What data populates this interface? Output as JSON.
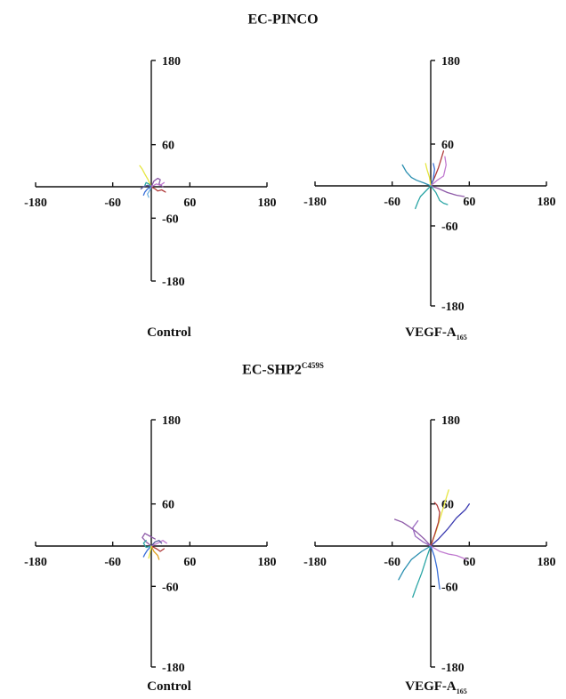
{
  "sections": [
    {
      "title": "EC-PINCO",
      "title_sup": ""
    },
    {
      "title": "EC-SHP2",
      "title_sup": "C459S"
    }
  ],
  "captions": [
    {
      "text": "Control",
      "sub": ""
    },
    {
      "text": "VEGF-A",
      "sub": "165"
    },
    {
      "text": "Control",
      "sub": ""
    },
    {
      "text": "VEGF-A",
      "sub": "165"
    }
  ],
  "chart_data": [
    {
      "type": "line",
      "title": "EC-PINCO",
      "panel_caption": "Control",
      "xlim": [
        -180,
        180
      ],
      "ylim": [
        -180,
        180
      ],
      "x_ticks": [
        "-180",
        "-60",
        "60",
        "180"
      ],
      "y_ticks": [
        "180",
        "60",
        "-60",
        "-180"
      ],
      "grid": false,
      "series": [
        {
          "color": "#e6e640",
          "points": [
            [
              0,
              0
            ],
            [
              -5,
              10
            ],
            [
              -10,
              18
            ],
            [
              -14,
              25
            ],
            [
              -18,
              30
            ]
          ]
        },
        {
          "color": "#8e5aa8",
          "points": [
            [
              0,
              0
            ],
            [
              4,
              8
            ],
            [
              10,
              12
            ],
            [
              14,
              10
            ],
            [
              12,
              4
            ],
            [
              18,
              0
            ]
          ]
        },
        {
          "color": "#b03a3a",
          "points": [
            [
              0,
              0
            ],
            [
              6,
              -4
            ],
            [
              10,
              -8
            ],
            [
              16,
              -6
            ],
            [
              22,
              -10
            ]
          ]
        },
        {
          "color": "#3a6fd8",
          "points": [
            [
              0,
              0
            ],
            [
              -6,
              -4
            ],
            [
              -10,
              -10
            ],
            [
              -12,
              -16
            ]
          ]
        },
        {
          "color": "#2aa5a5",
          "points": [
            [
              0,
              0
            ],
            [
              -4,
              4
            ],
            [
              -8,
              6
            ],
            [
              -10,
              2
            ]
          ]
        },
        {
          "color": "#6fb0e0",
          "points": [
            [
              0,
              0
            ],
            [
              -2,
              -6
            ],
            [
              -6,
              -14
            ],
            [
              -4,
              -20
            ]
          ]
        },
        {
          "color": "#c07ad0",
          "points": [
            [
              0,
              0
            ],
            [
              8,
              4
            ],
            [
              14,
              2
            ],
            [
              20,
              6
            ]
          ]
        },
        {
          "color": "#555599",
          "points": [
            [
              0,
              0
            ],
            [
              -6,
              2
            ],
            [
              -12,
              0
            ],
            [
              -16,
              -4
            ]
          ]
        }
      ]
    },
    {
      "type": "line",
      "title": "EC-PINCO",
      "panel_caption": "VEGF-A165",
      "xlim": [
        -180,
        180
      ],
      "ylim": [
        -180,
        180
      ],
      "x_ticks": [
        "-180",
        "-60",
        "60",
        "180"
      ],
      "y_ticks": [
        "180",
        "60",
        "-60",
        "-180"
      ],
      "grid": false,
      "series": [
        {
          "color": "#b03a3a",
          "points": [
            [
              0,
              0
            ],
            [
              6,
              12
            ],
            [
              12,
              26
            ],
            [
              16,
              38
            ],
            [
              20,
              50
            ]
          ]
        },
        {
          "color": "#8e5aa8",
          "points": [
            [
              0,
              0
            ],
            [
              12,
              -4
            ],
            [
              26,
              -10
            ],
            [
              40,
              -14
            ],
            [
              52,
              -16
            ]
          ]
        },
        {
          "color": "#2aa5a5",
          "points": [
            [
              0,
              0
            ],
            [
              -8,
              -8
            ],
            [
              -16,
              -16
            ],
            [
              -20,
              -24
            ],
            [
              -24,
              -34
            ]
          ]
        },
        {
          "color": "#2a8fb0",
          "points": [
            [
              0,
              0
            ],
            [
              -10,
              4
            ],
            [
              -22,
              8
            ],
            [
              -30,
              12
            ],
            [
              -38,
              20
            ],
            [
              -44,
              30
            ]
          ]
        },
        {
          "color": "#3a6fd8",
          "points": [
            [
              0,
              0
            ],
            [
              4,
              10
            ],
            [
              6,
              24
            ],
            [
              4,
              32
            ]
          ]
        },
        {
          "color": "#e6e640",
          "points": [
            [
              0,
              0
            ],
            [
              -2,
              12
            ],
            [
              -6,
              24
            ],
            [
              -8,
              32
            ]
          ]
        },
        {
          "color": "#c07ad0",
          "points": [
            [
              0,
              0
            ],
            [
              10,
              8
            ],
            [
              20,
              14
            ],
            [
              24,
              30
            ],
            [
              22,
              42
            ]
          ]
        },
        {
          "color": "#2aa5a5",
          "points": [
            [
              0,
              0
            ],
            [
              8,
              -10
            ],
            [
              14,
              -22
            ],
            [
              20,
              -26
            ],
            [
              26,
              -28
            ]
          ]
        }
      ]
    },
    {
      "type": "line",
      "title": "EC-SHP2C459S",
      "panel_caption": "Control",
      "xlim": [
        -180,
        180
      ],
      "ylim": [
        -180,
        180
      ],
      "x_ticks": [
        "-180",
        "-60",
        "60",
        "180"
      ],
      "y_ticks": [
        "180",
        "60",
        "-60",
        "-180"
      ],
      "grid": false,
      "series": [
        {
          "color": "#8e5aa8",
          "points": [
            [
              0,
              0
            ],
            [
              -8,
              6
            ],
            [
              -14,
              12
            ],
            [
              -10,
              18
            ],
            [
              -2,
              14
            ],
            [
              6,
              10
            ]
          ]
        },
        {
          "color": "#b03a3a",
          "points": [
            [
              0,
              0
            ],
            [
              8,
              -4
            ],
            [
              14,
              -8
            ],
            [
              20,
              -4
            ]
          ]
        },
        {
          "color": "#e0a020",
          "points": [
            [
              0,
              0
            ],
            [
              4,
              -8
            ],
            [
              10,
              -14
            ],
            [
              12,
              -20
            ]
          ]
        },
        {
          "color": "#3a6fd8",
          "points": [
            [
              0,
              0
            ],
            [
              -6,
              -6
            ],
            [
              -10,
              -12
            ],
            [
              -12,
              -16
            ]
          ]
        },
        {
          "color": "#2aa5a5",
          "points": [
            [
              0,
              0
            ],
            [
              -8,
              -2
            ],
            [
              -12,
              4
            ],
            [
              -8,
              8
            ]
          ]
        },
        {
          "color": "#c07ad0",
          "points": [
            [
              0,
              0
            ],
            [
              10,
              4
            ],
            [
              18,
              8
            ],
            [
              24,
              4
            ]
          ]
        },
        {
          "color": "#555599",
          "points": [
            [
              0,
              0
            ],
            [
              6,
              6
            ],
            [
              12,
              8
            ],
            [
              16,
              4
            ]
          ]
        },
        {
          "color": "#e6e640",
          "points": [
            [
              0,
              0
            ],
            [
              -2,
              -10
            ],
            [
              -4,
              -18
            ]
          ]
        }
      ]
    },
    {
      "type": "line",
      "title": "EC-SHP2C459S",
      "panel_caption": "VEGF-A165",
      "xlim": [
        -180,
        180
      ],
      "ylim": [
        -180,
        180
      ],
      "x_ticks": [
        "-180",
        "-60",
        "60",
        "180"
      ],
      "y_ticks": [
        "180",
        "60",
        "-60",
        "-180"
      ],
      "grid": false,
      "series": [
        {
          "color": "#3a3ab0",
          "points": [
            [
              0,
              0
            ],
            [
              12,
              10
            ],
            [
              26,
              24
            ],
            [
              40,
              40
            ],
            [
              54,
              52
            ],
            [
              60,
              60
            ]
          ]
        },
        {
          "color": "#e6e640",
          "points": [
            [
              0,
              0
            ],
            [
              8,
              20
            ],
            [
              16,
              44
            ],
            [
              22,
              62
            ],
            [
              28,
              80
            ]
          ]
        },
        {
          "color": "#b03a3a",
          "points": [
            [
              0,
              0
            ],
            [
              6,
              16
            ],
            [
              12,
              34
            ],
            [
              14,
              48
            ],
            [
              10,
              58
            ],
            [
              6,
              62
            ]
          ]
        },
        {
          "color": "#8e5aa8",
          "points": [
            [
              0,
              0
            ],
            [
              -10,
              10
            ],
            [
              -22,
              20
            ],
            [
              -34,
              28
            ],
            [
              -44,
              34
            ],
            [
              -56,
              38
            ]
          ]
        },
        {
          "color": "#c07ad0",
          "points": [
            [
              0,
              0
            ],
            [
              14,
              -8
            ],
            [
              28,
              -12
            ],
            [
              40,
              -14
            ],
            [
              56,
              -20
            ]
          ]
        },
        {
          "color": "#2aa5a5",
          "points": [
            [
              0,
              0
            ],
            [
              -6,
              -16
            ],
            [
              -14,
              -40
            ],
            [
              -22,
              -60
            ],
            [
              -28,
              -76
            ]
          ]
        },
        {
          "color": "#2a8fb0",
          "points": [
            [
              0,
              0
            ],
            [
              -14,
              -8
            ],
            [
              -30,
              -20
            ],
            [
              -42,
              -36
            ],
            [
              -50,
              -50
            ]
          ]
        },
        {
          "color": "#3a6fd8",
          "points": [
            [
              0,
              0
            ],
            [
              6,
              -16
            ],
            [
              10,
              -34
            ],
            [
              12,
              -50
            ],
            [
              14,
              -64
            ]
          ]
        },
        {
          "color": "#9a6ac0",
          "points": [
            [
              0,
              0
            ],
            [
              -12,
              6
            ],
            [
              -24,
              14
            ],
            [
              -28,
              26
            ],
            [
              -20,
              36
            ]
          ]
        }
      ]
    }
  ]
}
